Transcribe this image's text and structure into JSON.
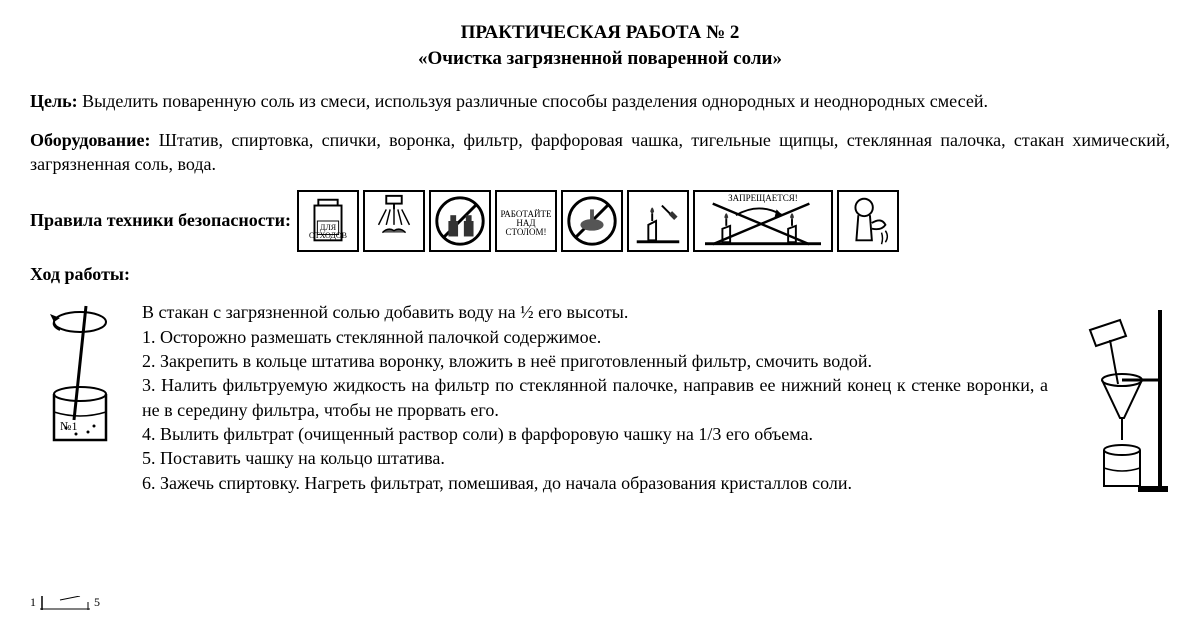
{
  "title": {
    "line1": "ПРАКТИЧЕСКАЯ РАБОТА № 2",
    "line2": "«Очистка загрязненной поваренной соли»"
  },
  "goal": {
    "label": "Цель:",
    "text": " Выделить поваренную соль из смеси, используя различные способы разделения однородных и неоднородных смесей."
  },
  "equipment": {
    "label": "Оборудование:",
    "text": "   Штатив, спиртовка, спички, воронка, фильтр, фарфоровая чашка, тигельные щипцы, стеклянная палочка, стакан химический, загрязненная соль, вода."
  },
  "safety": {
    "label": "Правила техники безопасности:",
    "icon_labels": {
      "waste": "ДЛЯ\nОТХОДОВ",
      "work_over_table": "РАБОТАЙТЕ\nНАД\nСТОЛОМ!",
      "forbidden": "ЗАПРЕЩАЕТСЯ!"
    }
  },
  "procedure": {
    "label": "Ход работы:",
    "intro": "В стакан с загрязненной солью добавить воду на ½ его высоты.",
    "steps": [
      "1. Осторожно размешать стеклянной палочкой содержимое.",
      "2. Закрепить в кольце штатива воронку, вложить в неё приготовленный фильтр, смочить водой.",
      "3. Налить фильтруемую жидкость на фильтр по  стеклянной палочке, направив ее нижний конец к стенке воронки, а не в середину фильтра, чтобы не прорвать его.",
      "4. Вылить фильтрат (очищенный раствор соли) в фарфоровую чашку на 1/3   его объема.",
      "5.    Поставить чашку на кольцо штатива.",
      "6. Зажечь спиртовку. Нагреть фильтрат, помешивая,  до начала образования кристаллов соли."
    ]
  },
  "ruler": {
    "left_mark": "1",
    "right_mark": "5"
  },
  "colors": {
    "text": "#000000",
    "background": "#ffffff",
    "icon_stroke": "#000000",
    "icon_fill_gray": "#888888"
  }
}
